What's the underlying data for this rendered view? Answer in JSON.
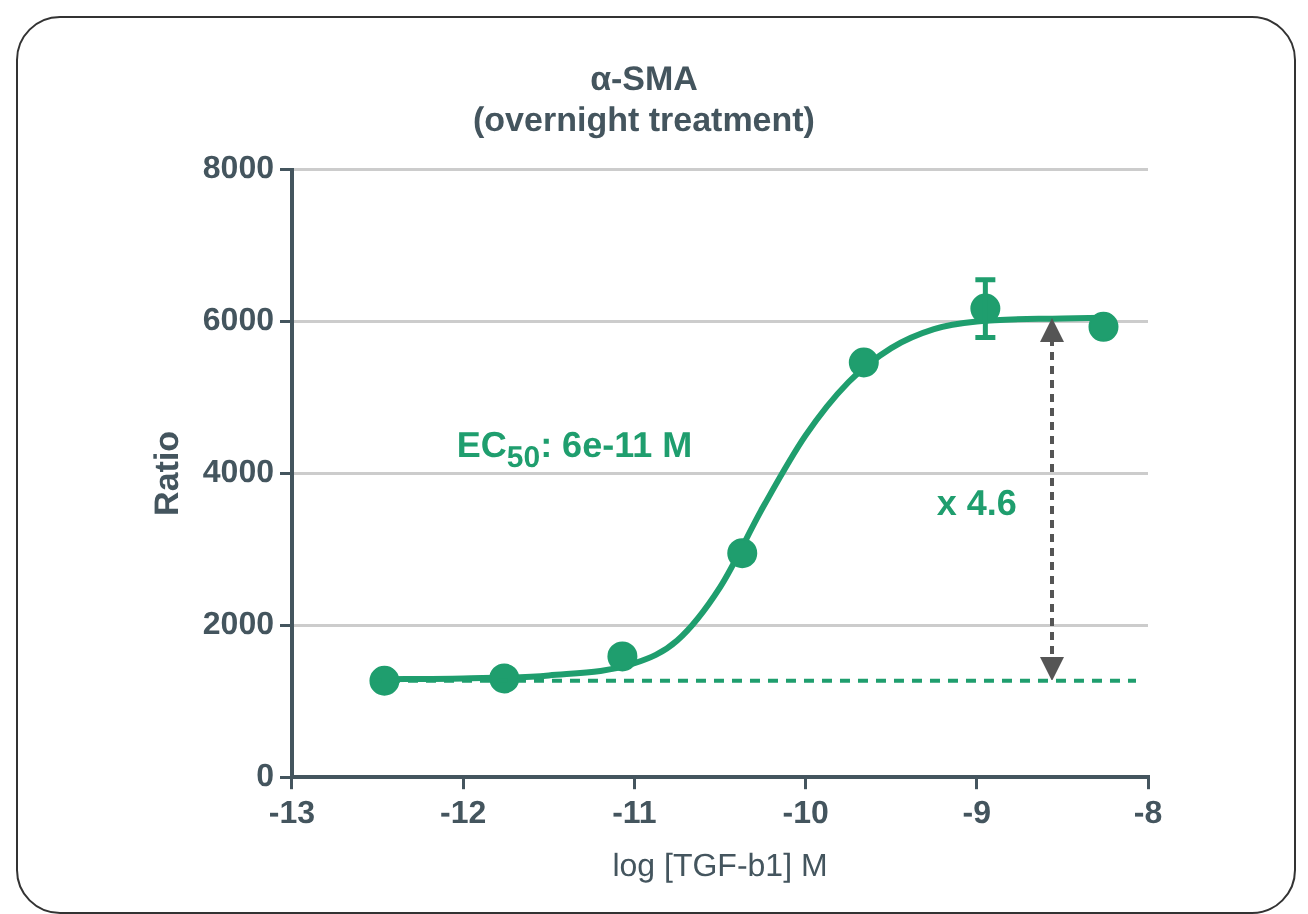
{
  "chart_data": {
    "type": "scatter",
    "title": "α-SMA",
    "subtitle": "(overnight treatment)",
    "xlabel": "log [TGF-b1] M",
    "ylabel": "Ratio",
    "xlim": [
      -13,
      -8
    ],
    "xticks": [
      -13,
      -12,
      -11,
      -10,
      -9,
      -8
    ],
    "ylim": [
      0,
      8000
    ],
    "yticks": [
      0,
      2000,
      4000,
      6000,
      8000
    ],
    "grid": "y",
    "legend": false,
    "series": [
      {
        "color": "#1f9e6e",
        "marker": "circle",
        "x": [
          -12.46,
          -11.76,
          -11.07,
          -10.37,
          -9.66,
          -8.95,
          -8.26
        ],
        "values": [
          1270,
          1300,
          1590,
          2950,
          5460,
          6170,
          5930
        ],
        "errors": [
          null,
          null,
          null,
          null,
          null,
          380,
          null
        ]
      },
      {
        "type": "line",
        "color": "#1f9e6e",
        "marker": "none",
        "line_style": "solid",
        "x": [
          -12.5,
          -12,
          -11.5,
          -11,
          -10.75,
          -10.5,
          -10.25,
          -10,
          -9.75,
          -9.5,
          -9.25,
          -9,
          -8.5,
          -8.25
        ],
        "values": [
          1290,
          1300,
          1340,
          1500,
          1800,
          2500,
          3550,
          4500,
          5200,
          5650,
          5900,
          6000,
          6040,
          6050
        ]
      }
    ],
    "ref_lines": [
      {
        "axis": "y",
        "value": 1270,
        "color": "#1f9e6e",
        "line_style": "dashed"
      }
    ],
    "annotations": [
      "EC$_{50}$: 6e-11 M",
      "x 4.6"
    ]
  }
}
